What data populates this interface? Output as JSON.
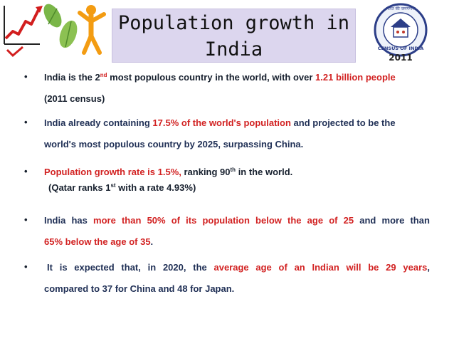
{
  "slide": {
    "title_line1": "Population growth in",
    "title_line2": "India",
    "logo_right": {
      "text": "CENSUS OF INDIA",
      "year": "2011",
      "hindi": "भारत की जनगणना"
    },
    "bullet_glyph": "•",
    "b1": {
      "a": "India is the 2",
      "sup": "nd",
      "b": " most populous country in the world, with over ",
      "c": "1.21 billion people",
      "l2": "(2011 census)"
    },
    "b2": {
      "a": "India already containing ",
      "b": "17.5% of the world's population",
      "c": " and projected to be the",
      "l2": "world's most populous country by 2025, surpassing China."
    },
    "b3": {
      "a": "Population growth rate is 1.5%,",
      "b": " ranking 90",
      "sup": "th",
      "c": "  in the world.",
      "l2a": "(Qatar ranks 1",
      "l2sup": "st",
      "l2b": " with a rate 4.93%)"
    },
    "b4": {
      "w": [
        "India",
        "has",
        "more",
        "than",
        "50%",
        "of",
        "its",
        "population",
        "below",
        "the",
        "age",
        "of",
        "25",
        "and",
        "more",
        "than"
      ],
      "l2a": "65%  below the age of 35",
      "l2b": "."
    },
    "b5": {
      "w": [
        "It",
        "is",
        "expected",
        "that,",
        "in",
        "2020,",
        "the",
        "average",
        "age",
        "of",
        "an",
        "Indian",
        "will",
        "be",
        "29",
        "years",
        ","
      ],
      "l2": "compared to 37 for China and 48 for Japan."
    }
  }
}
